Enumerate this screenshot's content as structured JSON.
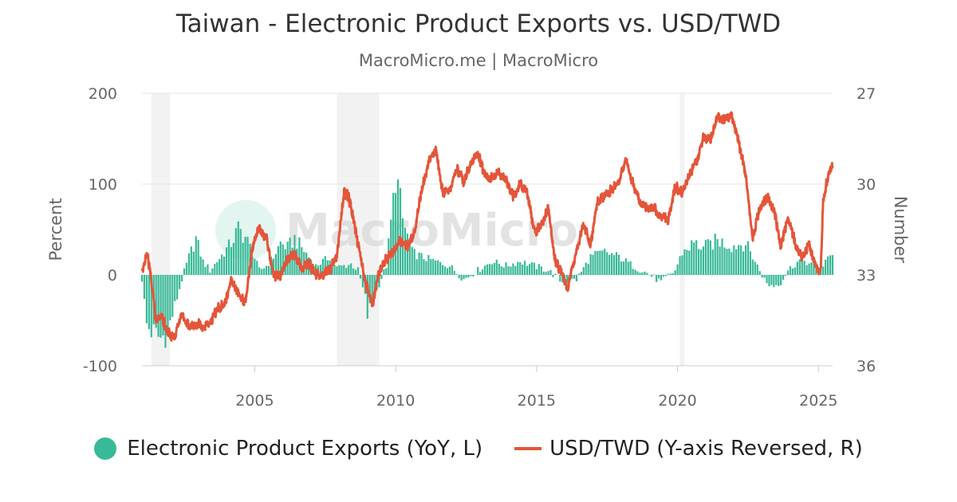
{
  "title": "Taiwan - Electronic Product Exports vs. USD/TWD",
  "subtitle": "MacroMicro.me | MacroMicro",
  "watermark": "MacroMicro",
  "colors": {
    "bars": "#38b997",
    "line": "#e4553a",
    "recession": "#f2f2f2",
    "grid": "#e6e6e6",
    "axis_text": "#666666"
  },
  "chart_data": {
    "type": "bar+line",
    "x_start": "2001-01",
    "x_end": "2025-07",
    "x_ticks": [
      "2005",
      "2010",
      "2015",
      "2020",
      "2025"
    ],
    "left_axis": {
      "label": "Percent",
      "ylim": [
        -100,
        200
      ],
      "ticks": [
        "200",
        "100",
        "0",
        "-100"
      ]
    },
    "right_axis": {
      "label": "Number",
      "ylim": [
        36,
        27
      ],
      "reversed": true,
      "ticks": [
        "27",
        "30",
        "33",
        "36"
      ]
    },
    "recession_shading": [
      [
        "2001-05",
        "2002-01"
      ],
      [
        "2007-12",
        "2009-06"
      ],
      [
        "2020-02",
        "2020-04"
      ]
    ],
    "legend_position": "bottom",
    "series": [
      {
        "name": "Electronic Product Exports (YoY, L)",
        "type": "bar",
        "axis": "left",
        "anchors": [
          [
            "2001-01",
            -5
          ],
          [
            "2001-03",
            -55
          ],
          [
            "2001-06",
            -65
          ],
          [
            "2001-09",
            -70
          ],
          [
            "2001-12",
            -62
          ],
          [
            "2002-03",
            -35
          ],
          [
            "2002-06",
            -5
          ],
          [
            "2002-09",
            20
          ],
          [
            "2002-12",
            40
          ],
          [
            "2003-03",
            15
          ],
          [
            "2003-06",
            5
          ],
          [
            "2003-09",
            15
          ],
          [
            "2003-12",
            25
          ],
          [
            "2004-03",
            35
          ],
          [
            "2004-06",
            50
          ],
          [
            "2004-09",
            42
          ],
          [
            "2004-12",
            25
          ],
          [
            "2005-03",
            5
          ],
          [
            "2005-06",
            10
          ],
          [
            "2005-09",
            20
          ],
          [
            "2005-12",
            35
          ],
          [
            "2006-03",
            30
          ],
          [
            "2006-06",
            40
          ],
          [
            "2006-09",
            30
          ],
          [
            "2006-12",
            20
          ],
          [
            "2007-03",
            10
          ],
          [
            "2007-06",
            15
          ],
          [
            "2007-09",
            20
          ],
          [
            "2007-12",
            8
          ],
          [
            "2008-03",
            10
          ],
          [
            "2008-06",
            12
          ],
          [
            "2008-09",
            5
          ],
          [
            "2008-12",
            -25
          ],
          [
            "2009-01",
            -45
          ],
          [
            "2009-03",
            -30
          ],
          [
            "2009-06",
            -10
          ],
          [
            "2009-09",
            10
          ],
          [
            "2009-12",
            80
          ],
          [
            "2010-01",
            115
          ],
          [
            "2010-04",
            60
          ],
          [
            "2010-08",
            25
          ],
          [
            "2010-12",
            20
          ],
          [
            "2011-06",
            15
          ],
          [
            "2011-12",
            10
          ],
          [
            "2012-06",
            -5
          ],
          [
            "2012-12",
            5
          ],
          [
            "2013-06",
            15
          ],
          [
            "2013-12",
            10
          ],
          [
            "2014-06",
            15
          ],
          [
            "2014-12",
            10
          ],
          [
            "2015-06",
            5
          ],
          [
            "2015-12",
            -8
          ],
          [
            "2016-06",
            -5
          ],
          [
            "2016-12",
            20
          ],
          [
            "2017-06",
            25
          ],
          [
            "2017-12",
            20
          ],
          [
            "2018-06",
            10
          ],
          [
            "2018-12",
            2
          ],
          [
            "2019-06",
            -8
          ],
          [
            "2019-12",
            5
          ],
          [
            "2020-03",
            25
          ],
          [
            "2020-08",
            35
          ],
          [
            "2020-12",
            30
          ],
          [
            "2021-06",
            38
          ],
          [
            "2021-12",
            32
          ],
          [
            "2022-06",
            35
          ],
          [
            "2022-12",
            5
          ],
          [
            "2023-03",
            -10
          ],
          [
            "2023-06",
            -12
          ],
          [
            "2023-09",
            -8
          ],
          [
            "2023-12",
            5
          ],
          [
            "2024-03",
            12
          ],
          [
            "2024-06",
            18
          ],
          [
            "2024-09",
            12
          ],
          [
            "2024-12",
            10
          ],
          [
            "2025-03",
            8
          ],
          [
            "2025-06",
            25
          ]
        ]
      },
      {
        "name": "USD/TWD (Y-axis Reversed, R)",
        "type": "line",
        "axis": "right",
        "anchors": [
          [
            "2001-01",
            33.0
          ],
          [
            "2001-03",
            32.2
          ],
          [
            "2001-05",
            33.2
          ],
          [
            "2001-07",
            34.6
          ],
          [
            "2001-09",
            34.3
          ],
          [
            "2001-12",
            34.9
          ],
          [
            "2002-03",
            35.1
          ],
          [
            "2002-06",
            34.3
          ],
          [
            "2002-09",
            34.7
          ],
          [
            "2002-12",
            34.6
          ],
          [
            "2003-03",
            34.7
          ],
          [
            "2003-06",
            34.6
          ],
          [
            "2003-09",
            34.1
          ],
          [
            "2003-12",
            34.0
          ],
          [
            "2004-03",
            33.2
          ],
          [
            "2004-06",
            33.6
          ],
          [
            "2004-09",
            33.9
          ],
          [
            "2004-12",
            32.1
          ],
          [
            "2005-01",
            31.8
          ],
          [
            "2005-03",
            31.4
          ],
          [
            "2005-06",
            31.8
          ],
          [
            "2005-09",
            33.0
          ],
          [
            "2005-12",
            33.0
          ],
          [
            "2006-03",
            32.5
          ],
          [
            "2006-06",
            32.3
          ],
          [
            "2006-09",
            32.8
          ],
          [
            "2006-12",
            32.6
          ],
          [
            "2007-03",
            33.0
          ],
          [
            "2007-06",
            33.0
          ],
          [
            "2007-09",
            32.8
          ],
          [
            "2007-12",
            32.4
          ],
          [
            "2008-03",
            30.3
          ],
          [
            "2008-05",
            30.4
          ],
          [
            "2008-08",
            31.6
          ],
          [
            "2008-12",
            33.2
          ],
          [
            "2009-03",
            34.0
          ],
          [
            "2009-06",
            32.9
          ],
          [
            "2009-09",
            32.5
          ],
          [
            "2009-12",
            32.2
          ],
          [
            "2010-03",
            31.8
          ],
          [
            "2010-06",
            32.1
          ],
          [
            "2010-09",
            31.6
          ],
          [
            "2010-12",
            30.2
          ],
          [
            "2011-03",
            29.3
          ],
          [
            "2011-06",
            28.8
          ],
          [
            "2011-09",
            30.3
          ],
          [
            "2011-12",
            30.2
          ],
          [
            "2012-03",
            29.5
          ],
          [
            "2012-06",
            29.9
          ],
          [
            "2012-09",
            29.3
          ],
          [
            "2012-12",
            29.0
          ],
          [
            "2013-03",
            29.7
          ],
          [
            "2013-06",
            29.8
          ],
          [
            "2013-09",
            29.6
          ],
          [
            "2013-12",
            29.9
          ],
          [
            "2014-03",
            30.4
          ],
          [
            "2014-06",
            30.0
          ],
          [
            "2014-09",
            30.3
          ],
          [
            "2014-12",
            31.6
          ],
          [
            "2015-03",
            31.4
          ],
          [
            "2015-06",
            30.8
          ],
          [
            "2015-09",
            32.6
          ],
          [
            "2015-12",
            32.9
          ],
          [
            "2016-02",
            33.5
          ],
          [
            "2016-06",
            32.2
          ],
          [
            "2016-09",
            31.3
          ],
          [
            "2016-12",
            32.0
          ],
          [
            "2017-03",
            30.6
          ],
          [
            "2017-06",
            30.4
          ],
          [
            "2017-09",
            30.2
          ],
          [
            "2017-12",
            29.9
          ],
          [
            "2018-03",
            29.2
          ],
          [
            "2018-06",
            30.0
          ],
          [
            "2018-09",
            30.6
          ],
          [
            "2018-12",
            30.8
          ],
          [
            "2019-03",
            30.8
          ],
          [
            "2019-06",
            31.1
          ],
          [
            "2019-09",
            31.2
          ],
          [
            "2019-12",
            30.1
          ],
          [
            "2020-03",
            30.3
          ],
          [
            "2020-06",
            29.7
          ],
          [
            "2020-09",
            29.3
          ],
          [
            "2020-12",
            28.5
          ],
          [
            "2021-03",
            28.5
          ],
          [
            "2021-06",
            27.8
          ],
          [
            "2021-09",
            27.9
          ],
          [
            "2021-12",
            27.7
          ],
          [
            "2022-03",
            28.6
          ],
          [
            "2022-06",
            29.7
          ],
          [
            "2022-09",
            31.8
          ],
          [
            "2022-12",
            30.8
          ],
          [
            "2023-03",
            30.4
          ],
          [
            "2023-06",
            30.8
          ],
          [
            "2023-09",
            32.1
          ],
          [
            "2023-12",
            31.1
          ],
          [
            "2024-03",
            31.9
          ],
          [
            "2024-06",
            32.4
          ],
          [
            "2024-09",
            32.0
          ],
          [
            "2024-12",
            32.8
          ],
          [
            "2025-02",
            32.8
          ],
          [
            "2025-03",
            30.5
          ],
          [
            "2025-05",
            29.8
          ],
          [
            "2025-07",
            29.3
          ]
        ]
      }
    ]
  },
  "legend": {
    "bars_label": "Electronic Product Exports (YoY, L)",
    "line_label": "USD/TWD (Y-axis Reversed, R)"
  }
}
